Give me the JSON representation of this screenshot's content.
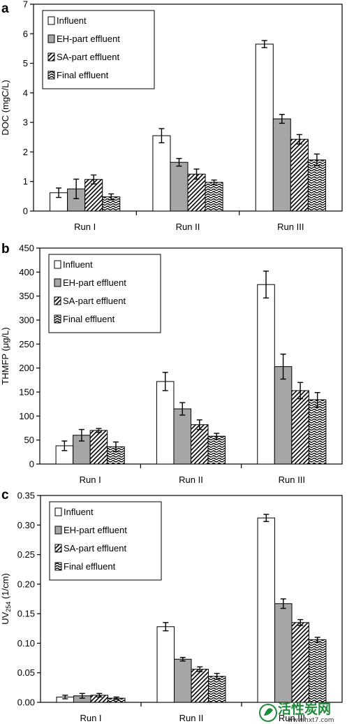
{
  "series_styles": [
    {
      "fill": "#ffffff",
      "pattern": "none"
    },
    {
      "fill": "#a6a6a6",
      "pattern": "none"
    },
    {
      "fill": "#ffffff",
      "pattern": "diagonal"
    },
    {
      "fill": "#ffffff",
      "pattern": "wave"
    }
  ],
  "chart_data": [
    {
      "type": "bar",
      "panel": "a",
      "ylabel": "DOC (mgC/L)",
      "ylim": [
        0,
        7
      ],
      "yticks": [
        "0",
        "1",
        "2",
        "3",
        "4",
        "5",
        "6",
        "7"
      ],
      "categories": [
        "Run I",
        "Run II",
        "Run III"
      ],
      "legend_position": "top-left",
      "series": [
        {
          "name": "Influent",
          "values": [
            0.62,
            2.55,
            5.65
          ],
          "errors": [
            0.16,
            0.24,
            0.12
          ]
        },
        {
          "name": "EH-part effluent",
          "values": [
            0.75,
            1.65,
            3.12
          ],
          "errors": [
            0.33,
            0.13,
            0.15
          ]
        },
        {
          "name": "SA-part effluent",
          "values": [
            1.07,
            1.25,
            2.43
          ],
          "errors": [
            0.15,
            0.17,
            0.16
          ]
        },
        {
          "name": "Final effluent",
          "values": [
            0.48,
            0.97,
            1.73
          ],
          "errors": [
            0.1,
            0.08,
            0.2
          ]
        }
      ]
    },
    {
      "type": "bar",
      "panel": "b",
      "ylabel": "THMFP (μg/L)",
      "ylim": [
        0,
        450
      ],
      "yticks": [
        "0",
        "50",
        "100",
        "150",
        "200",
        "250",
        "300",
        "350",
        "400",
        "450"
      ],
      "categories": [
        "Run I",
        "Run II",
        "Run III"
      ],
      "legend_position": "top-left",
      "series": [
        {
          "name": "Influent",
          "values": [
            38,
            172,
            374
          ],
          "errors": [
            10,
            19,
            28
          ]
        },
        {
          "name": "EH-part effluent",
          "values": [
            60,
            115,
            203
          ],
          "errors": [
            12,
            13,
            26
          ]
        },
        {
          "name": "SA-part effluent",
          "values": [
            70,
            82,
            153
          ],
          "errors": [
            4,
            10,
            17
          ]
        },
        {
          "name": "Final effluent",
          "values": [
            36,
            58,
            134
          ],
          "errors": [
            10,
            6,
            15
          ]
        }
      ]
    },
    {
      "type": "bar",
      "panel": "c",
      "ylabel_main": "UV",
      "ylabel_sub": "254",
      "ylabel_tail": " (1/cm)",
      "ylim": [
        0,
        0.35
      ],
      "yticks": [
        "0.00",
        "0.05",
        "0.10",
        "0.15",
        "0.20",
        "0.25",
        "0.30",
        "0.35"
      ],
      "categories": [
        "Run I",
        "Run II",
        "Run III"
      ],
      "legend_position": "top-left",
      "series": [
        {
          "name": "Influent",
          "values": [
            0.009,
            0.128,
            0.312
          ],
          "errors": [
            0.003,
            0.007,
            0.006
          ]
        },
        {
          "name": "EH-part effluent",
          "values": [
            0.011,
            0.073,
            0.167
          ],
          "errors": [
            0.004,
            0.003,
            0.008
          ]
        },
        {
          "name": "SA-part effluent",
          "values": [
            0.012,
            0.056,
            0.135
          ],
          "errors": [
            0.003,
            0.004,
            0.005
          ]
        },
        {
          "name": "Final effluent",
          "values": [
            0.007,
            0.044,
            0.106
          ],
          "errors": [
            0.002,
            0.005,
            0.004
          ]
        }
      ]
    }
  ],
  "watermark": {
    "text": "活性炭网",
    "url": "www.hxt7.com"
  }
}
